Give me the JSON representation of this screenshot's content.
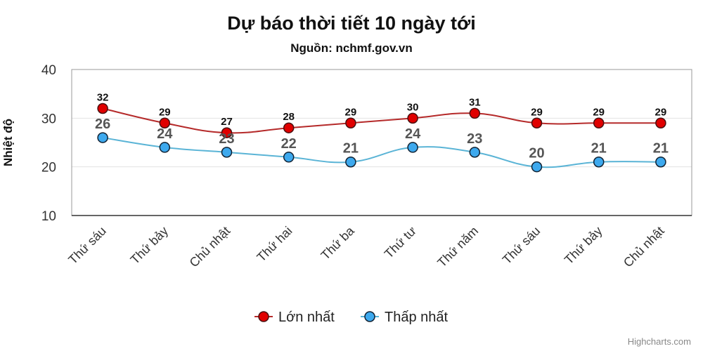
{
  "chart_data": {
    "type": "line",
    "title": "Dự báo thời tiết 10 ngày tới",
    "subtitle": "Nguồn: nchmf.gov.vn",
    "ylabel": "Nhiệt độ",
    "xlabel": "",
    "ylim": [
      10,
      40
    ],
    "yticks": [
      10,
      20,
      30,
      40
    ],
    "grid": true,
    "legend_placement": "bottom-center",
    "categories": [
      "Thứ sáu",
      "Thứ bảy",
      "Chủ nhật",
      "Thứ hai",
      "Thứ ba",
      "Thứ tư",
      "Thứ năm",
      "Thứ sáu",
      "Thứ bảy",
      "Chủ nhật"
    ],
    "series": [
      {
        "name": "Lớn nhất",
        "values": [
          32,
          29,
          27,
          28,
          29,
          30,
          31,
          29,
          29,
          29
        ],
        "color": "#e00000",
        "line_color": "#b52a2a"
      },
      {
        "name": "Thấp nhất",
        "values": [
          26,
          24,
          23,
          22,
          21,
          24,
          23,
          20,
          21,
          21
        ],
        "color": "#3da9ee",
        "line_color": "#5ab4d6"
      }
    ],
    "credits": "Highcharts.com"
  }
}
